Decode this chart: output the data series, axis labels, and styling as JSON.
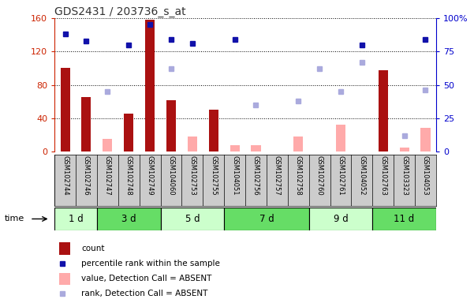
{
  "title": "GDS2431 / 203736_s_at",
  "samples": [
    "GSM102744",
    "GSM102746",
    "GSM102747",
    "GSM102748",
    "GSM102749",
    "GSM104060",
    "GSM102753",
    "GSM102755",
    "GSM104051",
    "GSM102756",
    "GSM102757",
    "GSM102758",
    "GSM102760",
    "GSM102761",
    "GSM104052",
    "GSM102763",
    "GSM103323",
    "GSM104053"
  ],
  "time_groups": [
    {
      "label": "1 d",
      "start": 0,
      "end": 2,
      "color": "#ccffcc"
    },
    {
      "label": "3 d",
      "start": 2,
      "end": 5,
      "color": "#66dd66"
    },
    {
      "label": "5 d",
      "start": 5,
      "end": 8,
      "color": "#ccffcc"
    },
    {
      "label": "7 d",
      "start": 8,
      "end": 12,
      "color": "#66dd66"
    },
    {
      "label": "9 d",
      "start": 12,
      "end": 15,
      "color": "#ccffcc"
    },
    {
      "label": "11 d",
      "start": 15,
      "end": 18,
      "color": "#66dd66"
    }
  ],
  "count": [
    100,
    65,
    null,
    45,
    158,
    62,
    null,
    50,
    null,
    null,
    null,
    null,
    null,
    null,
    null,
    98,
    null,
    null
  ],
  "percentile": [
    88,
    83,
    null,
    80,
    95,
    84,
    81,
    null,
    84,
    null,
    null,
    null,
    null,
    null,
    80,
    null,
    null,
    84
  ],
  "absent_value": [
    null,
    null,
    15,
    null,
    null,
    null,
    18,
    null,
    8,
    8,
    null,
    18,
    null,
    32,
    null,
    null,
    5,
    28
  ],
  "absent_rank": [
    null,
    null,
    45,
    null,
    null,
    62,
    null,
    null,
    null,
    35,
    null,
    38,
    62,
    45,
    67,
    null,
    12,
    46
  ],
  "ylim_left": [
    0,
    160
  ],
  "ylim_right": [
    0,
    100
  ],
  "yticks_left": [
    0,
    40,
    80,
    120,
    160
  ],
  "ytick_labels_left": [
    "0",
    "40",
    "80",
    "120",
    "160"
  ],
  "yticks_right": [
    0,
    25,
    50,
    75,
    100
  ],
  "ytick_labels_right": [
    "0",
    "25",
    "50",
    "75",
    "100%"
  ],
  "bar_color": "#aa1111",
  "absent_bar_color": "#ffaaaa",
  "dot_color": "#1111aa",
  "absent_dot_color": "#aaaadd",
  "title_color": "#333333",
  "left_axis_color": "#cc2200",
  "right_axis_color": "#0000cc",
  "bg_plot": "#ffffff",
  "bg_xlabels": "#cccccc"
}
